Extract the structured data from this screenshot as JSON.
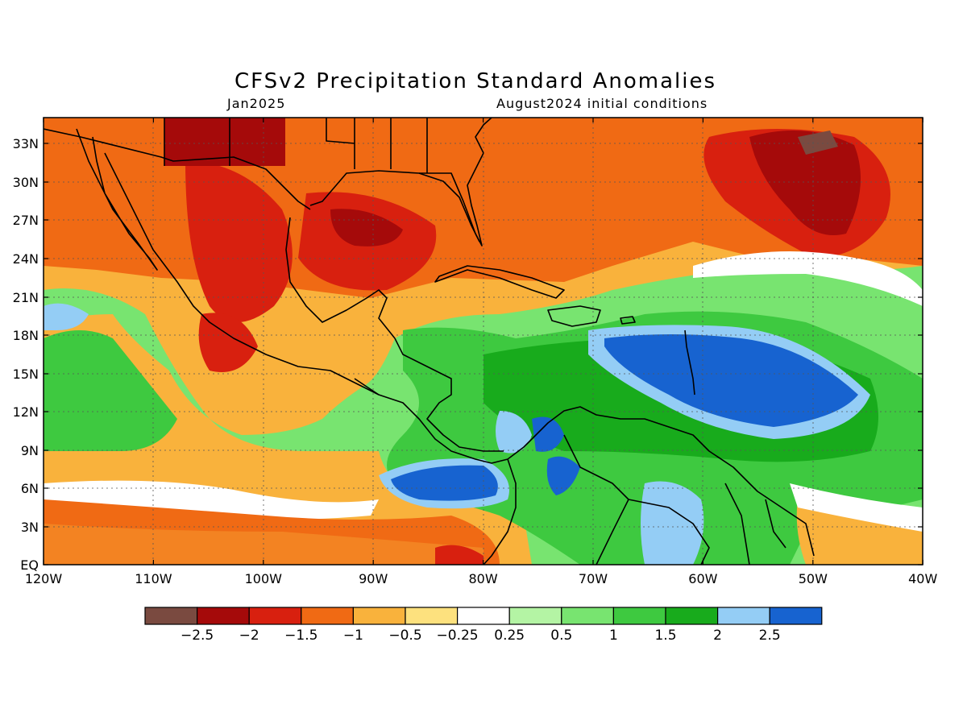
{
  "title": "CFSv2 Precipitation Standard Anomalies",
  "valid_month": "Jan2025",
  "init": "August2024 initial conditions",
  "map": {
    "lat_ticks": [
      "33N",
      "30N",
      "27N",
      "24N",
      "21N",
      "18N",
      "15N",
      "12N",
      "9N",
      "6N",
      "3N",
      "EQ"
    ],
    "lon_ticks": [
      "120W",
      "110W",
      "100W",
      "90W",
      "80W",
      "70W",
      "60W",
      "50W",
      "40W"
    ]
  },
  "legend": {
    "labels": [
      "-2.5",
      "-2",
      "-1.5",
      "-1",
      "-0.5",
      "-0.25",
      "0.25",
      "0.5",
      "1",
      "1.5",
      "2",
      "2.5"
    ],
    "colors": [
      "#7a4a40",
      "#a50a0a",
      "#d8200f",
      "#f06a14",
      "#f9b23c",
      "#fde17e",
      "#ffffff",
      "#b4f4a4",
      "#78e470",
      "#3ec940",
      "#18ab1c",
      "#94cdf5",
      "#1763d0"
    ]
  }
}
